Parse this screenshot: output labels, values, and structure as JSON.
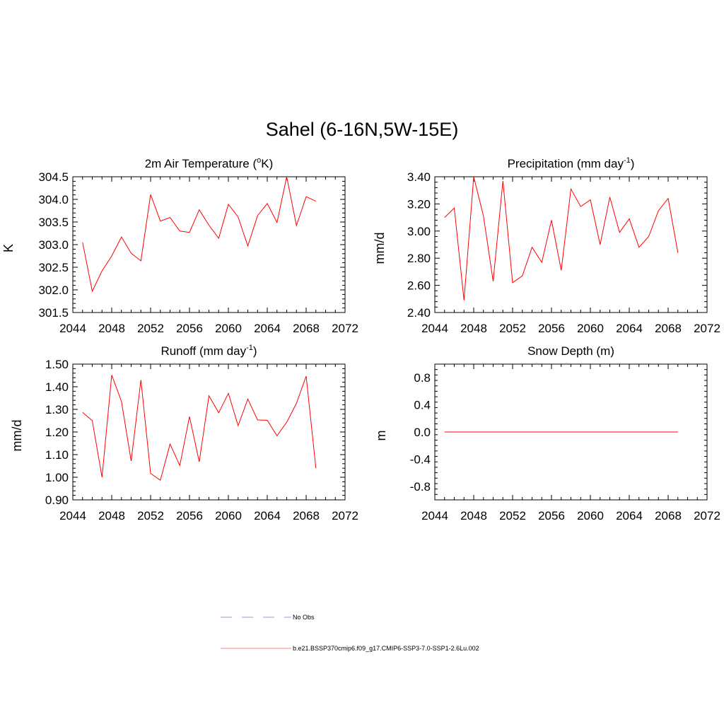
{
  "figure": {
    "title": "Sahel (6-16N,5W-15E)",
    "legend": [
      {
        "label": "No Obs",
        "color": "#9999dd",
        "style": "dashed"
      },
      {
        "label": "b.e21.BSSP370cmip6.f09_g17.CMIP6-SSP3-7.0-SSP1-2.6Lu.002",
        "color": "#ff0000",
        "style": "solid"
      }
    ]
  },
  "chart_data": [
    {
      "type": "line",
      "title": "2m Air Temperature (",
      "title_sup": "o",
      "title_after": "K)",
      "ylabel": "K",
      "xlim": [
        2044,
        2072
      ],
      "ylim": [
        301.5,
        304.5
      ],
      "xticks": [
        2044,
        2048,
        2052,
        2056,
        2060,
        2064,
        2068,
        2072
      ],
      "yticks": [
        "301.5",
        "302.0",
        "302.5",
        "303.0",
        "303.5",
        "304.0",
        "304.5"
      ],
      "color": "#ff0000",
      "x": [
        2045,
        2046,
        2047,
        2048,
        2049,
        2050,
        2051,
        2052,
        2053,
        2054,
        2055,
        2056,
        2057,
        2058,
        2059,
        2060,
        2061,
        2062,
        2063,
        2064,
        2065,
        2066,
        2067,
        2068,
        2069
      ],
      "values": [
        303.05,
        301.97,
        302.42,
        302.75,
        303.17,
        302.81,
        302.64,
        304.11,
        303.52,
        303.6,
        303.3,
        303.27,
        303.77,
        303.43,
        303.14,
        303.89,
        303.61,
        302.97,
        303.64,
        303.91,
        303.49,
        304.5,
        303.42,
        304.06,
        303.96
      ]
    },
    {
      "type": "line",
      "title": "Precipitation (mm day",
      "title_sup": "-1",
      "title_after": ")",
      "ylabel": "mm/d",
      "xlim": [
        2044,
        2072
      ],
      "ylim": [
        2.4,
        3.4
      ],
      "xticks": [
        2044,
        2048,
        2052,
        2056,
        2060,
        2064,
        2068,
        2072
      ],
      "yticks": [
        "2.40",
        "2.60",
        "2.80",
        "3.00",
        "3.20",
        "3.40"
      ],
      "color": "#ff0000",
      "x": [
        2045,
        2046,
        2047,
        2048,
        2049,
        2050,
        2051,
        2052,
        2053,
        2054,
        2055,
        2056,
        2057,
        2058,
        2059,
        2060,
        2061,
        2062,
        2063,
        2064,
        2065,
        2066,
        2067,
        2068,
        2069
      ],
      "values": [
        3.1,
        3.17,
        2.49,
        3.4,
        3.11,
        2.63,
        3.37,
        2.62,
        2.67,
        2.88,
        2.77,
        3.08,
        2.71,
        3.31,
        3.18,
        3.23,
        2.9,
        3.25,
        2.99,
        3.09,
        2.88,
        2.96,
        3.15,
        3.24,
        2.84
      ]
    },
    {
      "type": "line",
      "title": "Runoff (mm day",
      "title_sup": "-1",
      "title_after": ")",
      "ylabel": "mm/d",
      "xlim": [
        2044,
        2072
      ],
      "ylim": [
        0.9,
        1.5
      ],
      "xticks": [
        2044,
        2048,
        2052,
        2056,
        2060,
        2064,
        2068,
        2072
      ],
      "yticks": [
        "0.90",
        "1.00",
        "1.10",
        "1.20",
        "1.30",
        "1.40",
        "1.50"
      ],
      "color": "#ff0000",
      "x": [
        2045,
        2046,
        2047,
        2048,
        2049,
        2050,
        2051,
        2052,
        2053,
        2054,
        2055,
        2056,
        2057,
        2058,
        2059,
        2060,
        2061,
        2062,
        2063,
        2064,
        2065,
        2066,
        2067,
        2068,
        2069
      ],
      "values": [
        1.287,
        1.25,
        1.0,
        1.452,
        1.335,
        1.072,
        1.43,
        1.017,
        0.987,
        1.147,
        1.052,
        1.268,
        1.068,
        1.36,
        1.285,
        1.371,
        1.228,
        1.346,
        1.253,
        1.252,
        1.183,
        1.243,
        1.327,
        1.447,
        1.04
      ]
    },
    {
      "type": "line",
      "title": "Snow Depth (m)",
      "title_sup": "",
      "title_after": "",
      "ylabel": "m",
      "xlim": [
        2044,
        2072
      ],
      "ylim": [
        -1.0,
        1.0
      ],
      "xticks": [
        2044,
        2048,
        2052,
        2056,
        2060,
        2064,
        2068,
        2072
      ],
      "yticks": [
        "-0.8",
        "-0.4",
        "0.0",
        "0.4",
        "0.8"
      ],
      "ytick_values": [
        -0.8,
        -0.4,
        0.0,
        0.4,
        0.8
      ],
      "color": "#ff0000",
      "x": [
        2045,
        2046,
        2047,
        2048,
        2049,
        2050,
        2051,
        2052,
        2053,
        2054,
        2055,
        2056,
        2057,
        2058,
        2059,
        2060,
        2061,
        2062,
        2063,
        2064,
        2065,
        2066,
        2067,
        2068,
        2069
      ],
      "values": [
        0,
        0,
        0,
        0,
        0,
        0,
        0,
        0,
        0,
        0,
        0,
        0,
        0,
        0,
        0,
        0,
        0,
        0,
        0,
        0,
        0,
        0,
        0,
        0,
        0
      ]
    }
  ]
}
